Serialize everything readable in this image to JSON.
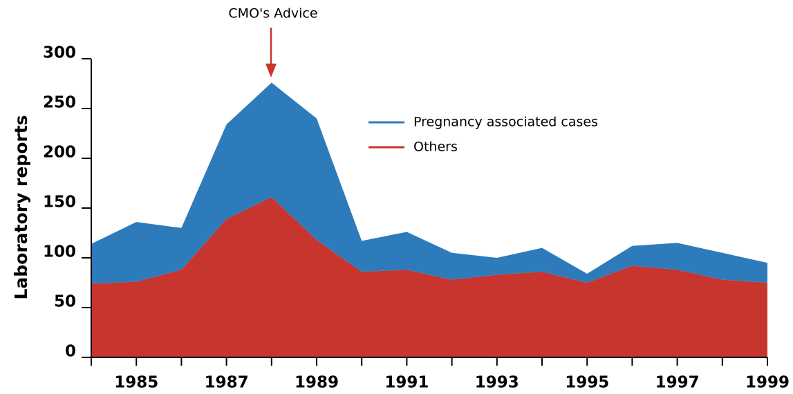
{
  "chart_data": {
    "type": "stacked_area",
    "y_label": "Laboratory reports",
    "annotation": "CMO's Advice",
    "categories": [
      null,
      "1985",
      null,
      "1987",
      null,
      "1989",
      null,
      "1991",
      null,
      "1993",
      null,
      "1995",
      null,
      "1997",
      null,
      "1999"
    ],
    "series": [
      {
        "name": "Pregnancy associated cases",
        "color": "#2e7bbb",
        "values": [
          40,
          60,
          42,
          95,
          115,
          122,
          31,
          38,
          27,
          17,
          24,
          9,
          20,
          27,
          27,
          20
        ]
      },
      {
        "name": "Others",
        "color": "#c8352e",
        "values": [
          74,
          76,
          88,
          139,
          161,
          118,
          86,
          88,
          78,
          83,
          86,
          75,
          92,
          88,
          78,
          75
        ]
      }
    ],
    "ylim": [
      0,
      300
    ],
    "yticks": [
      0,
      50,
      100,
      150,
      200,
      250,
      300
    ],
    "grid": false
  }
}
